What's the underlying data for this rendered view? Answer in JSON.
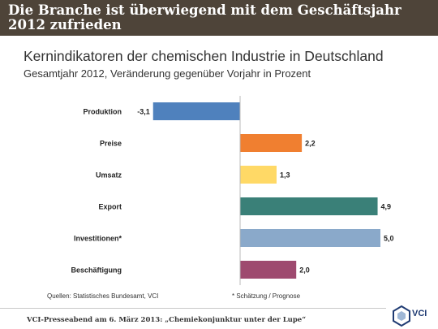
{
  "header": {
    "title": "Die Branche ist überwiegend mit dem Geschäftsjahr 2012 zufrieden"
  },
  "chart_data": {
    "type": "bar",
    "orientation": "horizontal",
    "title": "Kernindikatoren der chemischen Industrie in Deutschland",
    "subtitle": "Gesamtjahr 2012, Veränderung gegenüber Vorjahr in Prozent",
    "categories": [
      "Produktion",
      "Preise",
      "Umsatz",
      "Export",
      "Investitionen*",
      "Beschäftigung"
    ],
    "values": [
      -3.1,
      2.2,
      1.3,
      4.9,
      5.0,
      2.0
    ],
    "value_labels": [
      "-3,1",
      "2,2",
      "1,3",
      "4,9",
      "5,0",
      "2,0"
    ],
    "colors": [
      "#4f81bd",
      "#f07f30",
      "#ffd966",
      "#3a8078",
      "#8aa9ca",
      "#9e4a6f"
    ],
    "xlim": [
      -3.1,
      5.0
    ],
    "grid": false,
    "legend": "none"
  },
  "footnotes": {
    "source": "Quellen: Statistisches Bundesamt, VCI",
    "note": "* Schätzung / Prognose"
  },
  "footer": {
    "text": "VCI-Presseabend am 6. März 2013: „Chemiekonjunktur unter der Lupe“",
    "logo_text": "VCI"
  }
}
